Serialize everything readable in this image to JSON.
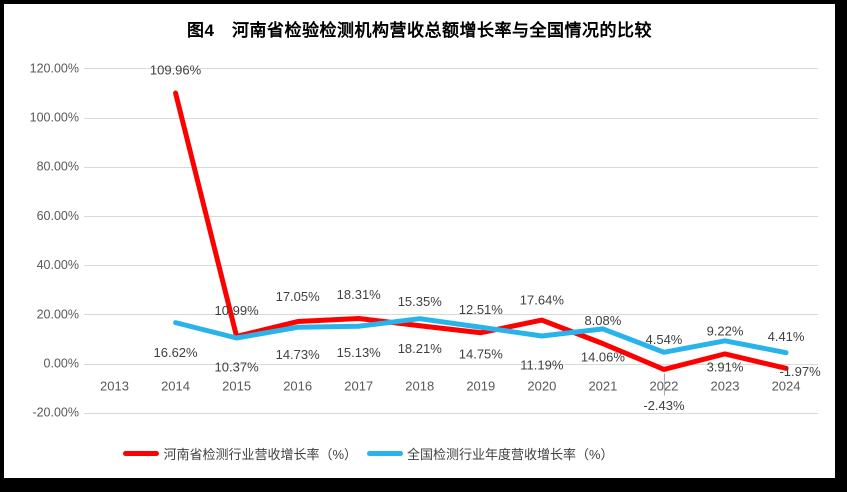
{
  "chart_data": {
    "type": "line",
    "title": "图4　河南省检验检测机构营收总额增长率与全国情况的比较",
    "categories": [
      "2013",
      "2014",
      "2015",
      "2016",
      "2017",
      "2018",
      "2019",
      "2020",
      "2021",
      "2022",
      "2023",
      "2024"
    ],
    "series": [
      {
        "name": "河南省检测行业营收增长率（%）",
        "color": "#FE0000",
        "values": [
          null,
          109.96,
          10.99,
          17.05,
          18.31,
          15.35,
          12.51,
          17.64,
          8.08,
          -2.43,
          3.91,
          -1.97
        ],
        "labels": [
          "",
          "109.96%",
          "10.99%",
          "17.05%",
          "18.31%",
          "15.35%",
          "12.51%",
          "17.64%",
          "8.08%",
          "-2.43%",
          "3.91%",
          "-1.97%"
        ]
      },
      {
        "name": "全国检测行业年度营收增长率（%）",
        "color": "#28B4EB",
        "values": [
          null,
          16.62,
          10.37,
          14.73,
          15.13,
          18.21,
          14.75,
          11.19,
          14.06,
          4.54,
          9.22,
          4.41
        ],
        "labels": [
          "",
          "16.62%",
          "10.37%",
          "14.73%",
          "15.13%",
          "18.21%",
          "14.75%",
          "11.19%",
          "14.06%",
          "4.54%",
          "9.22%",
          "4.41%"
        ]
      }
    ],
    "y_axis": {
      "tick_labels": [
        "120.00%",
        "100.00%",
        "80.00%",
        "60.00%",
        "40.00%",
        "20.00%",
        "0.00%",
        "-20.00%"
      ],
      "tick_values": [
        120,
        100,
        80,
        60,
        40,
        20,
        0,
        -20
      ],
      "min": -20,
      "max": 120
    },
    "grid": true,
    "legend_position": "bottom",
    "colors": {
      "grid": "#D9D9D9",
      "axis_text": "#595959",
      "label_text": "#404040",
      "leader": "#A6A6A6",
      "frame": "#000000",
      "background": "#FFFFFF"
    },
    "layout": {
      "label_offsets": [
        [
          [
            0,
            0
          ],
          [
            0,
            -23
          ],
          [
            0,
            -26
          ],
          [
            0,
            -25
          ],
          [
            0,
            -24
          ],
          [
            0,
            -24
          ],
          [
            0,
            -23
          ],
          [
            0,
            -20
          ],
          [
            0,
            -23
          ],
          [
            0,
            36
          ],
          [
            0,
            13
          ],
          [
            14,
            3
          ]
        ],
        [
          [
            0,
            0
          ],
          [
            0,
            30
          ],
          [
            0,
            29
          ],
          [
            0,
            27
          ],
          [
            0,
            26
          ],
          [
            0,
            30
          ],
          [
            0,
            27
          ],
          [
            0,
            29
          ],
          [
            0,
            28
          ],
          [
            0,
            -13
          ],
          [
            0,
            -10
          ],
          [
            0,
            -16
          ]
        ]
      ],
      "leader": {
        "series": 0,
        "index": 9,
        "from_dy": 4,
        "to_dy": 26
      }
    }
  }
}
